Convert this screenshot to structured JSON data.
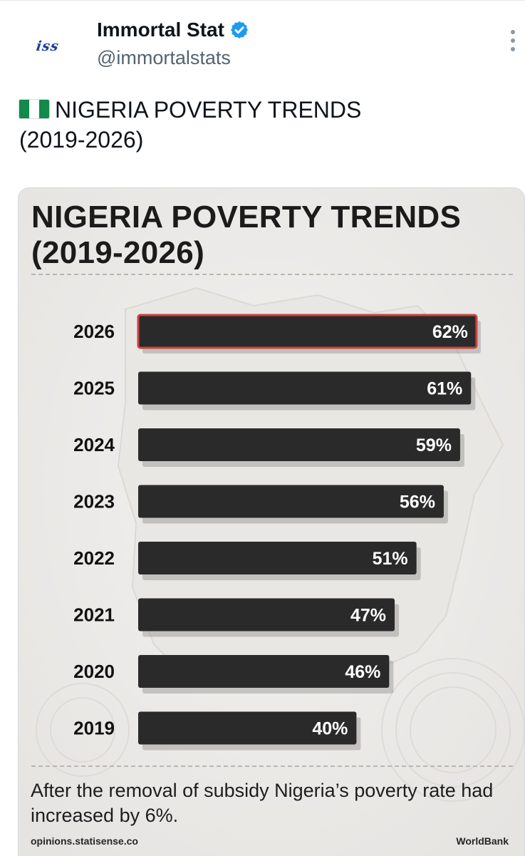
{
  "tweet": {
    "avatar_text": "iss",
    "display_name": "Immortal Stat",
    "handle": "@immortalstats",
    "text_line1": "NIGERIA POVERTY TRENDS",
    "text_line2": "(2019-2026)",
    "flag_icon": "nigeria-flag-icon",
    "verified_color": "#1d9bf0"
  },
  "card": {
    "title_line1": "NIGERIA POVERTY TRENDS",
    "title_line2": "(2019-2026)",
    "note": "After the removal of subsidy Nigeria’s poverty rate had increased by 6%.",
    "source_left": "opinions.statisense.co",
    "source_right": "WorldBank"
  },
  "chart_data": {
    "type": "bar",
    "orientation": "horizontal",
    "title": "NIGERIA POVERTY TRENDS (2019-2026)",
    "categories": [
      "2026",
      "2025",
      "2024",
      "2023",
      "2022",
      "2021",
      "2020",
      "2019"
    ],
    "values": [
      62,
      61,
      59,
      56,
      51,
      47,
      46,
      40
    ],
    "labels": [
      "62%",
      "61%",
      "59%",
      "56%",
      "51%",
      "47%",
      "46%",
      "40%"
    ],
    "unit": "%",
    "highlight_category": "2026",
    "highlight_color": "#c9463f",
    "bar_color": "#2b2a2a",
    "grid": false
  }
}
